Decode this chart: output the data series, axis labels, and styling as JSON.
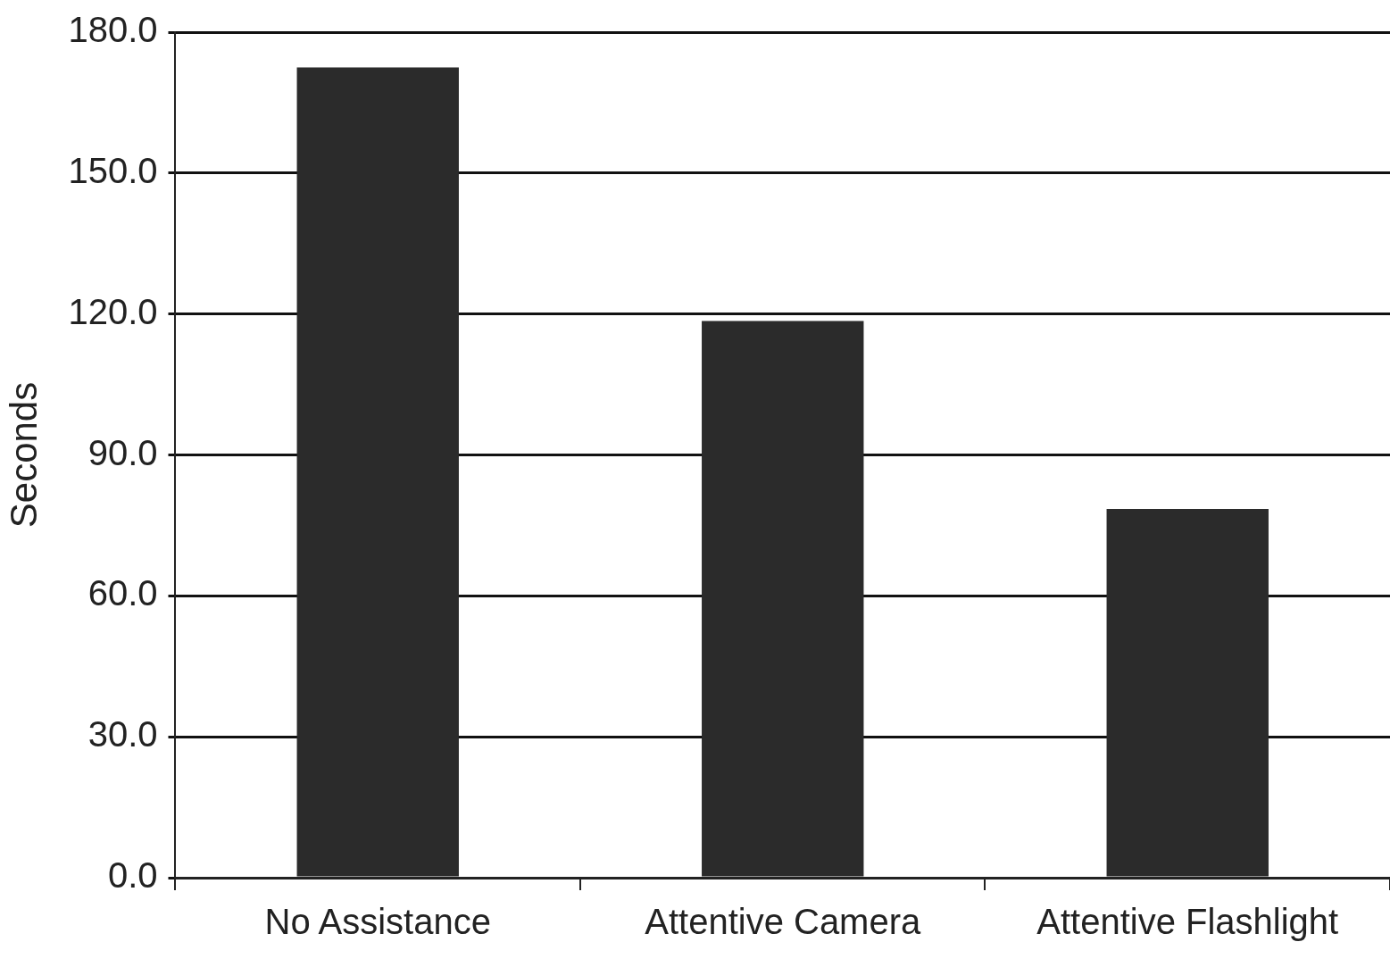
{
  "chart_data": {
    "type": "bar",
    "categories": [
      "No Assistance",
      "Attentive Camera",
      "Attentive Flashlight"
    ],
    "values": [
      172.5,
      118.5,
      78.5
    ],
    "color": "#2b2b2b",
    "ylabel": "Seconds",
    "ylim": [
      0,
      180
    ],
    "yticks": [
      {
        "value": 0,
        "label": "0.0"
      },
      {
        "value": 30,
        "label": "30.0"
      },
      {
        "value": 60,
        "label": "60.0"
      },
      {
        "value": 90,
        "label": "90.0"
      },
      {
        "value": 120,
        "label": "120.0"
      },
      {
        "value": 150,
        "label": "150.0"
      },
      {
        "value": 180,
        "label": "180.0"
      }
    ],
    "grid": "y",
    "legend": false
  }
}
